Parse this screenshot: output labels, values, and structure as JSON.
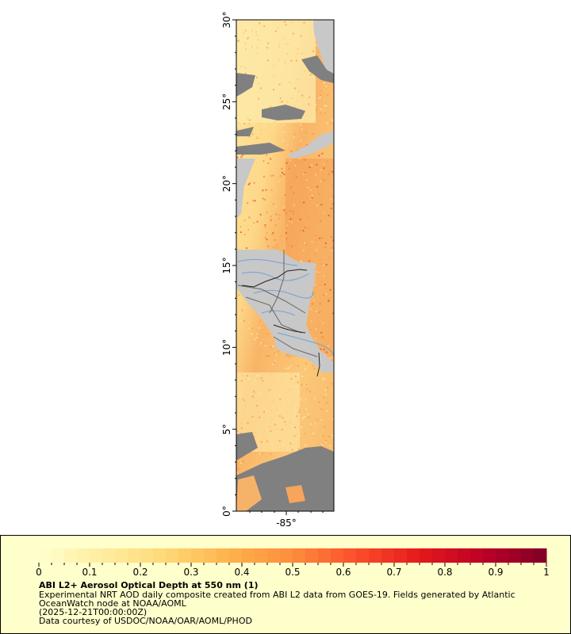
{
  "map": {
    "lat_range": [
      0,
      30
    ],
    "lon_center": -85,
    "y_ticks": [
      "0°",
      "5°",
      "10°",
      "15°",
      "20°",
      "25°",
      "30°"
    ],
    "x_ticks": [
      "-85°"
    ],
    "colors": {
      "haze_low": "#fde9a6",
      "haze_mid": "#fdd27e",
      "haze_high": "#f59a4a",
      "land": "#c8c8c8",
      "no_data": "#808080",
      "borders": "#666666",
      "national_borders": "#222222",
      "rivers": "#6fa3d8"
    }
  },
  "legend": {
    "background": "#ffffcc",
    "colorbar": {
      "min": 0,
      "max": 1,
      "tick_labels": [
        "0",
        "0.1",
        "0.2",
        "0.3",
        "0.4",
        "0.5",
        "0.6",
        "0.7",
        "0.8",
        "0.9",
        "1"
      ],
      "colors": [
        "#ffffcc",
        "#ffeda0",
        "#fed976",
        "#feb24c",
        "#fd8d3c",
        "#fc4e2a",
        "#e31a1c",
        "#bd0026",
        "#800026"
      ]
    },
    "title": "ABI L2+ Aerosol Optical Depth at 550 nm (1)",
    "line1": "Experimental NRT AOD daily composite created from ABI L2 data from GOES-19. Fields generated by Atlantic",
    "line2": "OceanWatch node at NOAA/AOML",
    "line3": "(2025-12-21T00:00:00Z)",
    "line4": "Data courtesy of USDOC/NOAA/OAR/AOML/PHOD"
  }
}
